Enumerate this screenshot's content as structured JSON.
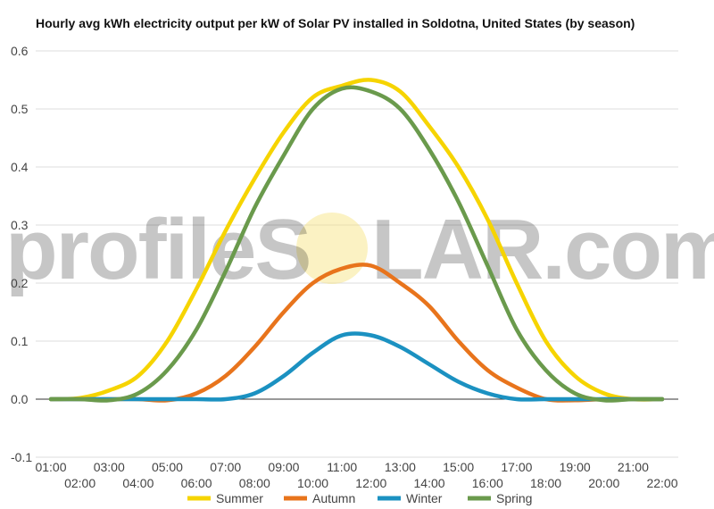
{
  "chart_data": {
    "type": "line",
    "title": "Hourly avg kWh electricity output per kW of Solar PV installed in Soldotna, United States (by season)",
    "xlabel": "",
    "ylabel": "",
    "ylim": [
      -0.1,
      0.6
    ],
    "yticks": [
      "-0.1",
      "0.0",
      "0.1",
      "0.2",
      "0.3",
      "0.4",
      "0.5",
      "0.6"
    ],
    "categories": [
      "01:00",
      "02:00",
      "03:00",
      "04:00",
      "05:00",
      "06:00",
      "07:00",
      "08:00",
      "09:00",
      "10:00",
      "11:00",
      "12:00",
      "13:00",
      "14:00",
      "15:00",
      "16:00",
      "17:00",
      "18:00",
      "19:00",
      "20:00",
      "21:00",
      "22:00"
    ],
    "grid": true,
    "legend_position": "bottom",
    "series": [
      {
        "name": "Summer",
        "color": "#f6d400",
        "values": [
          0.0,
          0.002,
          0.015,
          0.04,
          0.1,
          0.19,
          0.29,
          0.38,
          0.46,
          0.52,
          0.54,
          0.55,
          0.53,
          0.47,
          0.4,
          0.31,
          0.2,
          0.1,
          0.04,
          0.01,
          0.0,
          0.0
        ]
      },
      {
        "name": "Autumn",
        "color": "#e8741c",
        "values": [
          0.0,
          0.0,
          0.0,
          0.0,
          -0.002,
          0.01,
          0.04,
          0.09,
          0.15,
          0.2,
          0.225,
          0.23,
          0.2,
          0.16,
          0.1,
          0.05,
          0.02,
          0.0,
          -0.002,
          0.0,
          0.0,
          0.0
        ]
      },
      {
        "name": "Winter",
        "color": "#1b91c1",
        "values": [
          0.0,
          0.0,
          0.0,
          0.0,
          0.0,
          0.0,
          0.0,
          0.01,
          0.04,
          0.08,
          0.11,
          0.11,
          0.09,
          0.06,
          0.03,
          0.01,
          0.0,
          0.0,
          0.0,
          0.0,
          0.0,
          0.0
        ]
      },
      {
        "name": "Spring",
        "color": "#6a9a4c",
        "values": [
          0.0,
          0.0,
          -0.002,
          0.01,
          0.05,
          0.12,
          0.22,
          0.33,
          0.42,
          0.5,
          0.535,
          0.53,
          0.5,
          0.43,
          0.34,
          0.23,
          0.12,
          0.05,
          0.01,
          -0.002,
          0.0,
          0.0
        ]
      }
    ]
  },
  "watermark": {
    "text_left": "profileS",
    "text_right": "LAR.com",
    "sun_color": "#f6e27a"
  }
}
